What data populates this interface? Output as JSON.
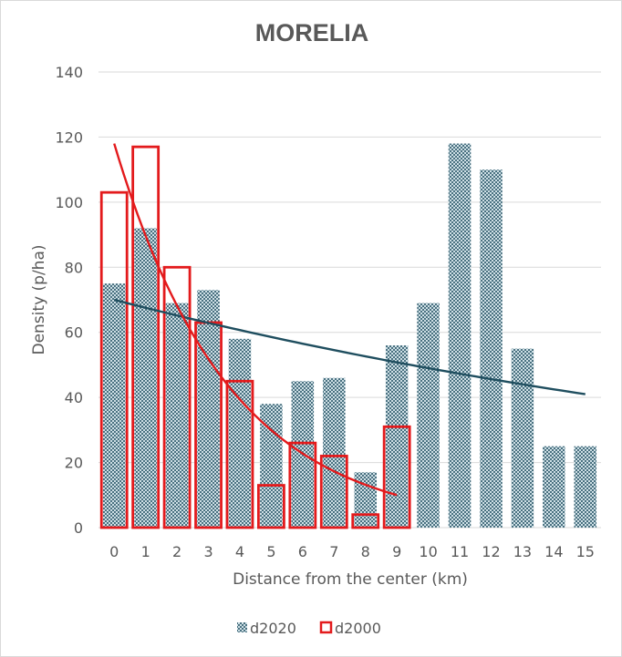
{
  "chart_data": {
    "type": "bar",
    "title": "MORELIA",
    "xlabel": "Distance from the center (km)",
    "ylabel": "Density (p/ha)",
    "ylim": [
      0,
      140
    ],
    "yticks": [
      0,
      20,
      40,
      60,
      80,
      100,
      120,
      140
    ],
    "categories": [
      "0",
      "1",
      "2",
      "3",
      "4",
      "5",
      "6",
      "7",
      "8",
      "9",
      "10",
      "11",
      "12",
      "13",
      "14",
      "15"
    ],
    "series": [
      {
        "name": "d2020",
        "style": "patterned-fill",
        "color": "#2e5a6b",
        "values": [
          75,
          92,
          69,
          73,
          58,
          38,
          45,
          46,
          17,
          56,
          69,
          118,
          110,
          55,
          25,
          25
        ]
      },
      {
        "name": "d2000",
        "style": "outline",
        "color": "#e31a1c",
        "values": [
          103,
          117,
          80,
          63,
          45,
          13,
          26,
          22,
          4,
          31,
          null,
          null,
          null,
          null,
          null,
          null
        ]
      }
    ],
    "trendlines": [
      {
        "series": "d2020",
        "type": "exponential",
        "color": "#1f4e5f",
        "x_range": [
          0,
          15
        ],
        "start": 70,
        "end": 41
      },
      {
        "series": "d2000",
        "type": "exponential",
        "color": "#e31a1c",
        "x_range": [
          0,
          9
        ],
        "start": 118,
        "end": 10
      }
    ],
    "grid": true,
    "legend": {
      "position": "bottom",
      "entries": [
        "d2020",
        "d2000"
      ]
    }
  }
}
